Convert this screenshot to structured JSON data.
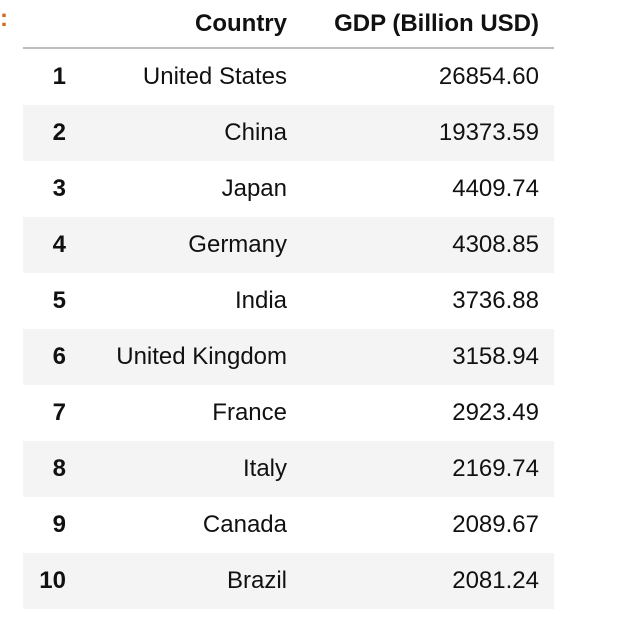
{
  "prompt_marker": ":",
  "table": {
    "columns": [
      "",
      "Country",
      "GDP (Billion USD)"
    ],
    "rows": [
      {
        "index": "1",
        "country": "United States",
        "gdp": "26854.60"
      },
      {
        "index": "2",
        "country": "China",
        "gdp": "19373.59"
      },
      {
        "index": "3",
        "country": "Japan",
        "gdp": "4409.74"
      },
      {
        "index": "4",
        "country": "Germany",
        "gdp": "4308.85"
      },
      {
        "index": "5",
        "country": "India",
        "gdp": "3736.88"
      },
      {
        "index": "6",
        "country": "United Kingdom",
        "gdp": "3158.94"
      },
      {
        "index": "7",
        "country": "France",
        "gdp": "2923.49"
      },
      {
        "index": "8",
        "country": "Italy",
        "gdp": "2169.74"
      },
      {
        "index": "9",
        "country": "Canada",
        "gdp": "2089.67"
      },
      {
        "index": "10",
        "country": "Brazil",
        "gdp": "2081.24"
      }
    ]
  }
}
